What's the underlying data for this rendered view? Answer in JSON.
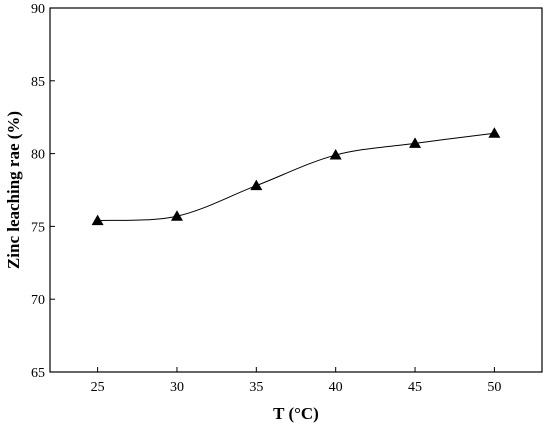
{
  "chart_data": {
    "type": "line",
    "title": "",
    "xlabel": "T (°C)",
    "ylabel": "Zinc leaching rae (%)",
    "xlim": [
      22,
      53
    ],
    "ylim": [
      65,
      90
    ],
    "x_ticks": [
      25,
      30,
      35,
      40,
      45,
      50
    ],
    "y_ticks": [
      65,
      70,
      75,
      80,
      85,
      90
    ],
    "grid": false,
    "legend": "none",
    "marker": "triangle",
    "series": [
      {
        "x": [
          25,
          30,
          35,
          40,
          45,
          50
        ],
        "values": [
          75.4,
          75.7,
          77.8,
          79.9,
          80.7,
          81.4
        ]
      }
    ],
    "colors": {
      "line": "#000000",
      "marker": "#000000",
      "axis": "#000000"
    }
  }
}
